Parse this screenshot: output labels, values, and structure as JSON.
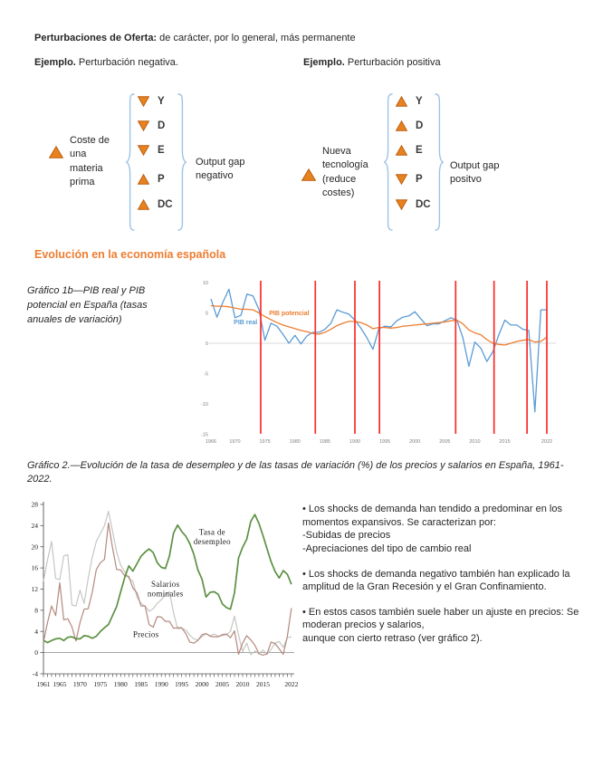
{
  "header": {
    "title_bold": "Perturbaciones de Oferta:",
    "title_rest": " de carácter, por lo general, más permanente"
  },
  "examples": {
    "negative": {
      "bold": "Ejemplo.",
      "rest": " Perturbación negativa."
    },
    "positive": {
      "bold": "Ejemplo.",
      "rest": " Perturbación positiva"
    }
  },
  "diagrams": {
    "negative": {
      "cause": "Coste de una materia prima",
      "cause_direction": "up",
      "items": [
        {
          "dir": "down",
          "label": "Y"
        },
        {
          "dir": "down",
          "label": "D"
        },
        {
          "dir": "down",
          "label": "E"
        },
        {
          "dir": "up",
          "label": "P"
        },
        {
          "dir": "up",
          "label": "DC"
        }
      ],
      "result": "Output gap negativo"
    },
    "positive": {
      "cause": "Nueva tecnología (reduce costes)",
      "cause_direction": "up",
      "items": [
        {
          "dir": "up",
          "label": "Y"
        },
        {
          "dir": "up",
          "label": "D"
        },
        {
          "dir": "up",
          "label": "E"
        },
        {
          "dir": "down",
          "label": "P"
        },
        {
          "dir": "down",
          "label": "DC"
        }
      ],
      "result": "Output gap positvo"
    }
  },
  "section_heading": "Evolución en la economía española",
  "captions": {
    "chart1": "Gráfico 1b—PIB real y PIB potencial en España (tasas anuales de variación)",
    "chart2": "Gráfico 2.—Evolución de la tasa de desempleo y de las tasas de variación (%) de los precios y salarios en España, 1961-2022."
  },
  "bullets": [
    "• Los shocks de demanda han tendido a predominar en los momentos expansivos. Se caracterizan por:\n-Subidas de precios\n-Apreciaciones del tipo de cambio real",
    "• Los shocks de demanda negativo también han explicado la amplitud de la Gran Recesión y el Gran Confinamiento.",
    "• En estos casos también suele haber un ajuste en precios: Se moderan precios y salarios,\naunque con cierto retraso (ver gráfico 2)."
  ],
  "colors": {
    "heading_orange": "#ED7D31",
    "triangle_fill": "#E8821E",
    "triangle_stroke": "#BC5D10",
    "brace_blue": "#9DC3E6",
    "pib_real_blue": "#5B9BD5",
    "pib_potencial_orange": "#ED7D31",
    "event_line_red": "#FB2B2B",
    "unemployment_green": "#5B9142",
    "wages_gray": "#C4C7C3",
    "prices_rose": "#B4897D"
  },
  "chart_data": [
    {
      "id": "chart1",
      "type": "line",
      "title": "PIB real y PIB potencial en España (tasas anuales de variación)",
      "x_start": 1966,
      "x_end": 2022,
      "xticks": [
        1966,
        1970,
        1975,
        1980,
        1985,
        1990,
        1995,
        2000,
        2005,
        2010,
        2015,
        2022
      ],
      "yticks": [
        10,
        5,
        0,
        -5,
        -10,
        -15
      ],
      "ylim": [
        -15,
        10.5
      ],
      "grid": "zero-line-only",
      "legend": "inline-labels",
      "series": [
        {
          "name": "PIB real",
          "color": "#5B9BD5",
          "values": [
            7.3,
            4.3,
            6.8,
            8.9,
            4.2,
            4.6,
            8.1,
            7.8,
            5.6,
            0.5,
            3.3,
            2.8,
            1.5,
            0.0,
            1.3,
            -0.1,
            1.2,
            1.8,
            1.8,
            2.3,
            3.3,
            5.5,
            5.1,
            4.8,
            3.8,
            2.5,
            0.9,
            -1.0,
            2.4,
            2.8,
            2.7,
            3.7,
            4.3,
            4.5,
            5.2,
            4.0,
            2.9,
            3.2,
            3.2,
            3.7,
            4.2,
            3.8,
            0.9,
            -3.8,
            0.2,
            -0.8,
            -3.0,
            -1.4,
            1.4,
            3.8,
            3.0,
            3.0,
            2.3,
            2.1,
            -11.3,
            5.5,
            5.5
          ]
        },
        {
          "name": "PIB potencial",
          "color": "#ED7D31",
          "values": [
            6.2,
            6.1,
            6.1,
            6.0,
            5.8,
            5.6,
            5.6,
            5.5,
            5.0,
            4.4,
            3.9,
            3.4,
            3.0,
            2.7,
            2.4,
            2.1,
            1.9,
            1.6,
            1.5,
            1.8,
            2.3,
            2.9,
            3.3,
            3.6,
            3.6,
            3.4,
            3.0,
            2.4,
            2.6,
            2.6,
            2.5,
            2.6,
            2.8,
            2.9,
            3.0,
            3.1,
            3.2,
            3.3,
            3.4,
            3.5,
            3.7,
            3.8,
            3.2,
            2.2,
            1.7,
            1.4,
            0.6,
            0.0,
            -0.2,
            -0.3,
            0.0,
            0.3,
            0.5,
            0.6,
            0.2,
            0.3,
            1.0
          ]
        }
      ],
      "event_lines": {
        "color": "#FB2B2B",
        "years": [
          1974.3,
          1983.4,
          1990,
          1994.1,
          2006.8,
          2013.2,
          2018.7,
          2022
        ]
      },
      "series_labels": [
        {
          "text": "PIB real",
          "x": 1969.8,
          "y": 3.1
        },
        {
          "text": "PIB potencial",
          "x": 1975.7,
          "y": 4.6
        }
      ]
    },
    {
      "id": "chart2",
      "type": "line",
      "title": "Tasa de desempleo y tasas de variación (%) de precios y salarios nominales, España 1961-2022",
      "x_start": 1961,
      "x_end": 2022,
      "xticks": [
        1961,
        1965,
        1970,
        1975,
        1980,
        1985,
        1990,
        1995,
        2000,
        2005,
        2010,
        2015,
        2022
      ],
      "yticks": [
        28,
        24,
        20,
        16,
        12,
        8,
        4,
        0,
        -4
      ],
      "ylim": [
        -4,
        28
      ],
      "grid": "zero-line-only",
      "legend": "inline-labels",
      "series": [
        {
          "name": "Tasa de desempleo",
          "color": "#5B9142",
          "values": [
            2.3,
            1.9,
            2.3,
            2.6,
            2.7,
            2.3,
            2.9,
            3.0,
            2.6,
            2.6,
            3.2,
            3.1,
            2.7,
            3.1,
            4.0,
            4.7,
            5.3,
            7.0,
            8.7,
            11.5,
            14.2,
            16.4,
            15.4,
            16.8,
            18.2,
            19.0,
            19.6,
            18.9,
            17.0,
            16.1,
            15.9,
            18.3,
            22.6,
            24.1,
            22.9,
            22.0,
            20.6,
            18.6,
            15.6,
            13.9,
            10.5,
            11.4,
            11.5,
            11.0,
            9.2,
            8.5,
            8.2,
            11.3,
            17.9,
            19.9,
            21.4,
            24.8,
            26.1,
            24.4,
            22.1,
            19.6,
            17.2,
            15.3,
            14.1,
            15.5,
            14.8,
            12.9
          ]
        },
        {
          "name": "Salarios nominales",
          "color": "#C4C7C3",
          "values": [
            13.5,
            17.5,
            21.0,
            14.0,
            13.8,
            18.3,
            18.5,
            9.0,
            8.8,
            11.8,
            9.3,
            14.0,
            18.0,
            21.0,
            22.5,
            24.0,
            26.7,
            23.0,
            19.0,
            16.5,
            15.3,
            14.0,
            13.5,
            10.5,
            9.3,
            8.8,
            7.8,
            8.3,
            9.3,
            10.0,
            11.0,
            11.5,
            7.5,
            4.5,
            4.6,
            4.3,
            3.3,
            2.6,
            2.4,
            3.0,
            3.6,
            3.2,
            3.5,
            3.1,
            3.2,
            3.4,
            4.0,
            6.9,
            3.3,
            0.2,
            1.8,
            -0.4,
            0.3,
            -0.2,
            0.5,
            -0.3,
            0.6,
            1.8,
            2.1,
            1.0,
            2.8,
            3.0
          ]
        },
        {
          "name": "Precios",
          "color": "#B4897D",
          "values": [
            2.0,
            5.7,
            8.8,
            7.0,
            13.2,
            6.2,
            6.4,
            4.9,
            2.2,
            5.7,
            8.2,
            8.3,
            11.4,
            15.7,
            17.0,
            17.6,
            24.5,
            19.8,
            15.7,
            15.6,
            14.5,
            14.4,
            12.2,
            11.3,
            8.8,
            8.8,
            5.3,
            4.8,
            6.8,
            6.7,
            5.9,
            5.9,
            4.6,
            4.7,
            4.7,
            3.6,
            2.0,
            1.8,
            2.3,
            3.4,
            3.6,
            3.1,
            3.0,
            3.0,
            3.4,
            3.5,
            2.8,
            4.1,
            -0.3,
            1.8,
            3.2,
            2.4,
            1.4,
            -0.2,
            -0.5,
            -0.2,
            2.0,
            1.7,
            0.7,
            -0.3,
            3.1,
            8.4
          ]
        }
      ],
      "annotations": [
        {
          "text": "Tasa de\ndesempleo",
          "x": 2002.5,
          "y": 22.3
        },
        {
          "text": "Salarios\nnominales",
          "x": 1991,
          "y": 12.4
        },
        {
          "text": "Precios",
          "x": 1986.2,
          "y": 2.9
        }
      ]
    }
  ]
}
